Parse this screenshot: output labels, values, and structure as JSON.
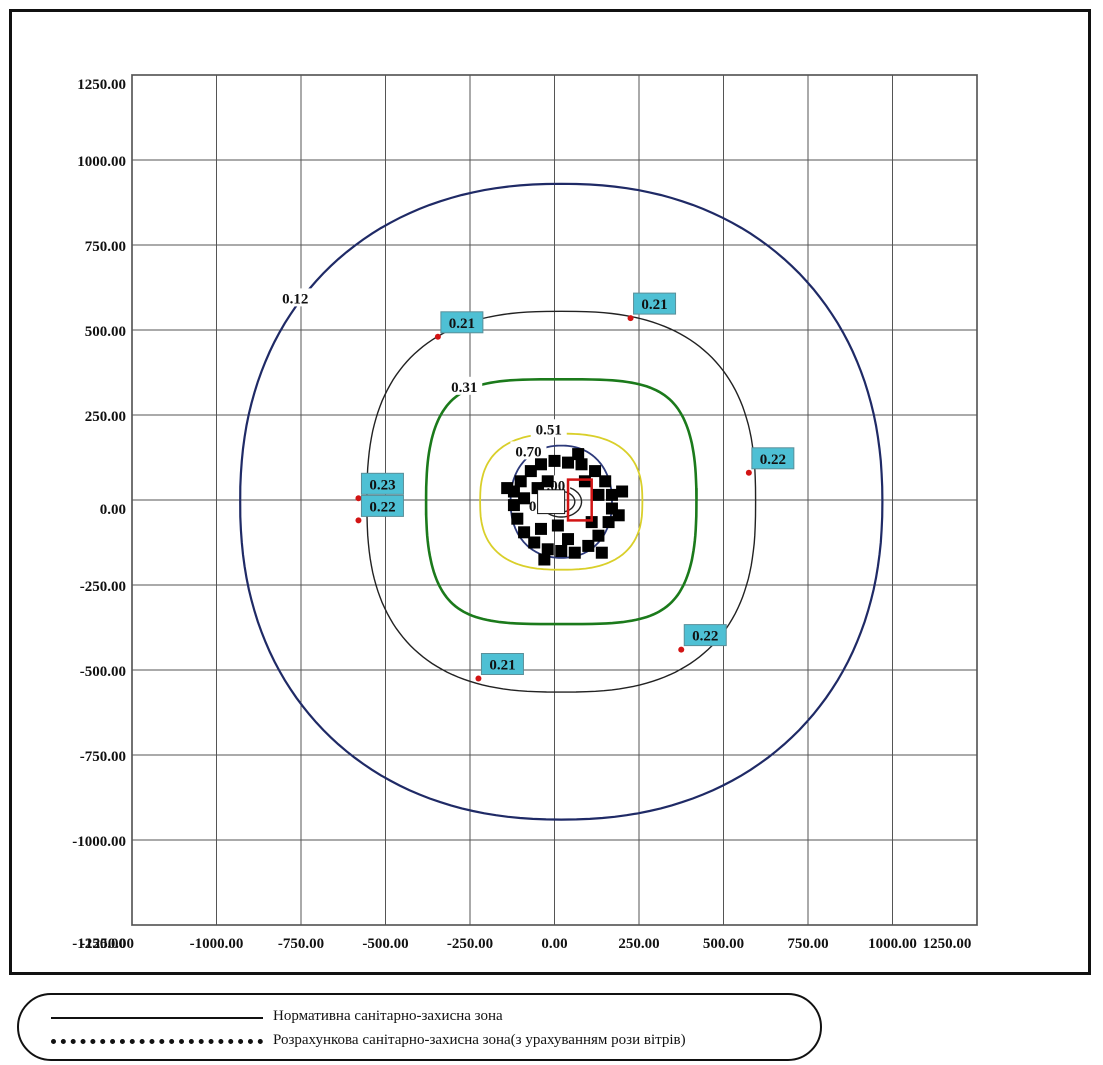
{
  "chart_data": {
    "type": "contour",
    "title": "",
    "xlabel": "",
    "ylabel": "",
    "xlim": [
      -1250,
      1250
    ],
    "ylim": [
      -1250,
      1250
    ],
    "grid": true,
    "x_ticks": [
      "-1250.00",
      "-1000.00",
      "-750.00",
      "-500.00",
      "-250.00",
      "0.00",
      "250.00",
      "500.00",
      "750.00",
      "1000.00",
      "1250.00"
    ],
    "y_ticks": [
      "1250.00",
      "1000.00",
      "750.00",
      "500.00",
      "250.00",
      "0.00",
      "-250.00",
      "-500.00",
      "-750.00",
      "-1000.00",
      "-1250.00"
    ],
    "contours": [
      {
        "level": "0.12",
        "color": "#1f2a66",
        "half_width": 950,
        "half_height": 935,
        "label_at": [
          -770,
          590
        ]
      },
      {
        "level": "0.21",
        "color": "#222222",
        "half_width": 575,
        "half_height": 560,
        "label_at": null
      },
      {
        "level": "0.31",
        "color": "#1b7a1b",
        "half_width": 400,
        "half_height": 360,
        "label_at": [
          -270,
          330
        ]
      },
      {
        "level": "0.51",
        "color": "#d9cf2a",
        "half_width": 240,
        "half_height": 200,
        "label_at": [
          -20,
          205
        ]
      },
      {
        "level": "0.70",
        "color": "#2d3a7a",
        "half_width": 150,
        "half_height": 165,
        "label_at": [
          -80,
          140
        ]
      },
      {
        "level": "1.00",
        "color": "#222222",
        "half_width": 60,
        "half_height": 45,
        "label_at": [
          -10,
          40
        ]
      },
      {
        "level": "0.99",
        "color": "#222222",
        "half_width": 40,
        "half_height": 30,
        "label_at": [
          -40,
          -20
        ]
      }
    ],
    "boundary_points": [
      {
        "label": "0.21",
        "x": -345,
        "y": 480
      },
      {
        "label": "0.21",
        "x": 225,
        "y": 535
      },
      {
        "label": "0.22",
        "x": 575,
        "y": 80
      },
      {
        "label": "0.23",
        "x": -580,
        "y": 5
      },
      {
        "label": "0.22",
        "x": -580,
        "y": -60
      },
      {
        "label": "0.22",
        "x": 375,
        "y": -440
      },
      {
        "label": "0.21",
        "x": -225,
        "y": -525
      }
    ],
    "marker_color": "#d21414",
    "label_box_color": "#4ec0d4",
    "source_marker_color": "#000000",
    "center_rect_color": "#d21414"
  },
  "legend": {
    "items": [
      {
        "style": "solid",
        "label": "Нормативна санітарно-захисна зона"
      },
      {
        "style": "dashed",
        "label": "Розрахункова санітарно-захисна зона(з урахуванням рози вітрів)"
      }
    ]
  }
}
